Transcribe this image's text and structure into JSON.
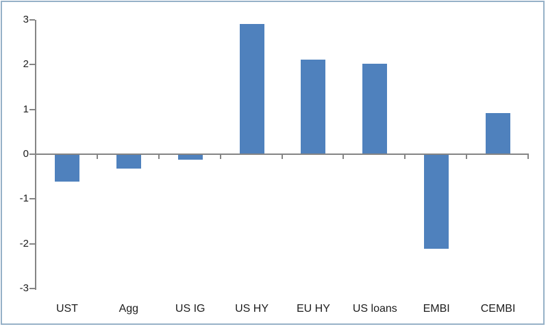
{
  "chart_data": {
    "type": "bar",
    "title": "",
    "xlabel": "",
    "ylabel": "",
    "categories": [
      "UST",
      "Agg",
      "US IG",
      "US HY",
      "EU HY",
      "US loans",
      "EMBI",
      "CEMBI"
    ],
    "values": [
      -0.6,
      -0.3,
      -0.1,
      2.9,
      2.1,
      2.0,
      -2.1,
      0.9
    ],
    "ylim": [
      -3,
      3
    ],
    "ytick_step": 1,
    "y_tick_labels": [
      "3",
      "2",
      "1",
      "0",
      "-1",
      "-2",
      "-3"
    ],
    "grid": false,
    "legend": false,
    "bar_color": "#4f81bd",
    "axis_color": "#848484",
    "frame_border_color": "#96b1c7",
    "background_color": "#ffffff"
  }
}
